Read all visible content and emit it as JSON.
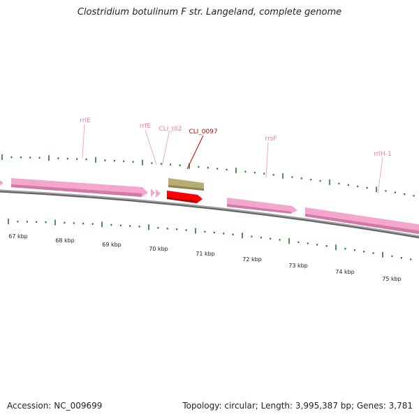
{
  "title": "Clostridium botulinum F str. Langeland, complete genome",
  "footer": {
    "accession": "Accession: NC_009699",
    "topology": "Topology: circular; Length: 3,995,387 bp; Genes: 3,781"
  },
  "colors": {
    "backbone": "#8c8c8c",
    "rrna": "#f4a6cc",
    "trna": "#b7ad72",
    "selected_gene": "#ff0000",
    "ticks": "#1f7a1f",
    "label_rrna": "#e879b3",
    "label_selected": "#cc0000"
  },
  "scale": {
    "unit": "kbp",
    "ticks": [
      "67 kbp",
      "68 kbp",
      "69 kbp",
      "70 kbp",
      "71 kbp",
      "72 kbp",
      "73 kbp",
      "74 kbp",
      "75 kbp"
    ]
  },
  "features": [
    {
      "name": "rrlE",
      "type": "rRNA"
    },
    {
      "name": "rrfE",
      "type": "rRNA"
    },
    {
      "name": "CLI_t02",
      "type": "tRNA"
    },
    {
      "name": "CLI_0097",
      "type": "gene",
      "selected": true
    },
    {
      "name": "rrsF",
      "type": "rRNA"
    },
    {
      "name": "rrlH-1",
      "type": "rRNA"
    }
  ]
}
